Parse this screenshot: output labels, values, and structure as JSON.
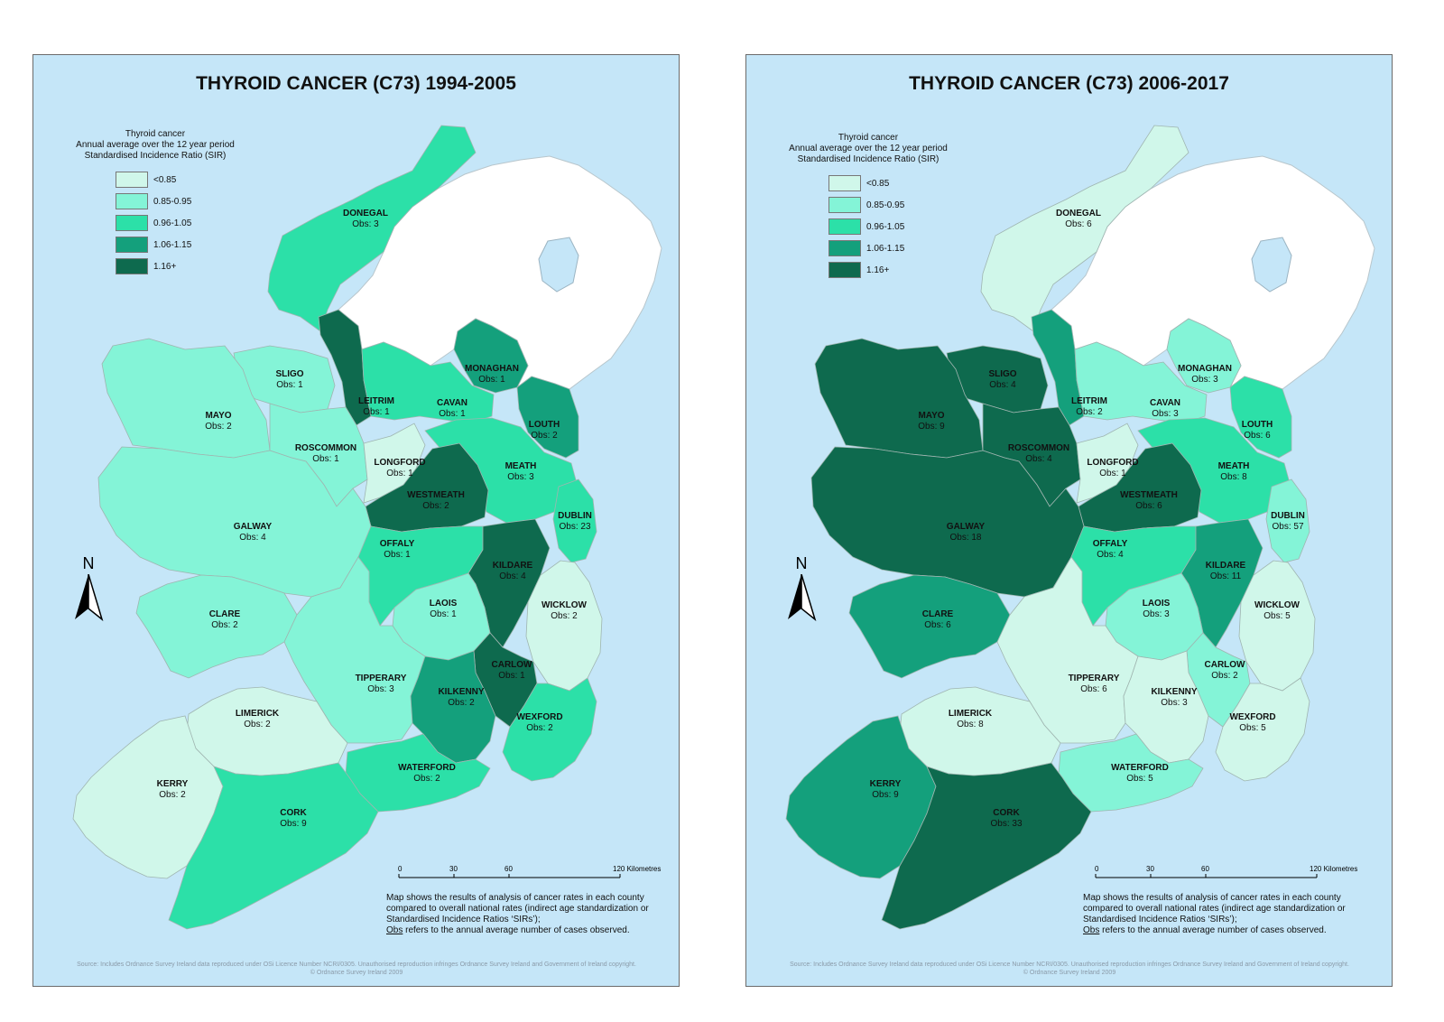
{
  "legend": {
    "title_line1": "Thyroid cancer",
    "title_line2": "Annual average over the 12 year period",
    "title_line3": "Standardised Incidence Ratio (SIR)",
    "classes": [
      {
        "label": "<0.85",
        "color": "#d0f7ea"
      },
      {
        "label": "0.85-0.95",
        "color": "#84f4d7"
      },
      {
        "label": "0.96-1.05",
        "color": "#2ce0a8"
      },
      {
        "label": "1.06-1.15",
        "color": "#14a07c"
      },
      {
        "label": "1.16+",
        "color": "#0e6a4e"
      }
    ]
  },
  "colors": {
    "sea": "#c5e6f8",
    "northern_ireland": "#ffffff",
    "county_border": "#9fb5b0"
  },
  "north_arrow": "N",
  "scale": {
    "ticks": [
      "0",
      "30",
      "60",
      "120 Kilometres"
    ]
  },
  "note": {
    "line1": "Map shows the results of analysis of cancer rates in each county",
    "line2": "compared to overall national rates (indirect age standardization or",
    "line3": "Standardised Incidence Ratios ‘SIRs’);",
    "obs_word": "Obs",
    "line4_rest": " refers to the annual average number of cases observed."
  },
  "source": {
    "line1": "Source: Includes Ordnance Survey Ireland data reproduced under OSi Licence Number NCRI/0305. Unauthorised reproduction infringes Ordnance Survey Ireland and Government of Ireland copyright.",
    "line2": "© Ordnance Survey Ireland 2009"
  },
  "maps": [
    {
      "title": "THYROID CANCER (C73) 1994-2005",
      "counties": [
        {
          "name": "DONEGAL",
          "obs": "Obs: 3",
          "class": 2
        },
        {
          "name": "SLIGO",
          "obs": "Obs: 1",
          "class": 1
        },
        {
          "name": "MAYO",
          "obs": "Obs: 2",
          "class": 1
        },
        {
          "name": "LEITRIM",
          "obs": "Obs: 1",
          "class": 4
        },
        {
          "name": "MONAGHAN",
          "obs": "Obs: 1",
          "class": 3
        },
        {
          "name": "CAVAN",
          "obs": "Obs: 1",
          "class": 2
        },
        {
          "name": "LOUTH",
          "obs": "Obs: 2",
          "class": 3
        },
        {
          "name": "ROSCOMMON",
          "obs": "Obs: 1",
          "class": 1
        },
        {
          "name": "LONGFORD",
          "obs": "Obs: 1",
          "class": 0
        },
        {
          "name": "MEATH",
          "obs": "Obs: 3",
          "class": 2
        },
        {
          "name": "WESTMEATH",
          "obs": "Obs: 2",
          "class": 4
        },
        {
          "name": "DUBLIN",
          "obs": "Obs: 23",
          "class": 2
        },
        {
          "name": "GALWAY",
          "obs": "Obs: 4",
          "class": 1
        },
        {
          "name": "OFFALY",
          "obs": "Obs: 1",
          "class": 2
        },
        {
          "name": "KILDARE",
          "obs": "Obs: 4",
          "class": 4
        },
        {
          "name": "LAOIS",
          "obs": "Obs: 1",
          "class": 1
        },
        {
          "name": "WICKLOW",
          "obs": "Obs: 2",
          "class": 0
        },
        {
          "name": "CLARE",
          "obs": "Obs: 2",
          "class": 1
        },
        {
          "name": "CARLOW",
          "obs": "Obs: 1",
          "class": 4
        },
        {
          "name": "TIPPERARY",
          "obs": "Obs: 3",
          "class": 1
        },
        {
          "name": "KILKENNY",
          "obs": "Obs: 2",
          "class": 3
        },
        {
          "name": "WEXFORD",
          "obs": "Obs: 2",
          "class": 2
        },
        {
          "name": "LIMERICK",
          "obs": "Obs: 2",
          "class": 0
        },
        {
          "name": "WATERFORD",
          "obs": "Obs: 2",
          "class": 2
        },
        {
          "name": "KERRY",
          "obs": "Obs: 2",
          "class": 0
        },
        {
          "name": "CORK",
          "obs": "Obs: 9",
          "class": 2
        }
      ]
    },
    {
      "title": "THYROID CANCER (C73) 2006-2017",
      "counties": [
        {
          "name": "DONEGAL",
          "obs": "Obs: 6",
          "class": 0
        },
        {
          "name": "SLIGO",
          "obs": "Obs: 4",
          "class": 4
        },
        {
          "name": "MAYO",
          "obs": "Obs: 9",
          "class": 4
        },
        {
          "name": "LEITRIM",
          "obs": "Obs: 2",
          "class": 3
        },
        {
          "name": "MONAGHAN",
          "obs": "Obs: 3",
          "class": 1
        },
        {
          "name": "CAVAN",
          "obs": "Obs: 3",
          "class": 1
        },
        {
          "name": "LOUTH",
          "obs": "Obs: 6",
          "class": 2
        },
        {
          "name": "ROSCOMMON",
          "obs": "Obs: 4",
          "class": 4
        },
        {
          "name": "LONGFORD",
          "obs": "Obs: 1",
          "class": 0
        },
        {
          "name": "MEATH",
          "obs": "Obs: 8",
          "class": 2
        },
        {
          "name": "WESTMEATH",
          "obs": "Obs: 6",
          "class": 4
        },
        {
          "name": "DUBLIN",
          "obs": "Obs: 57",
          "class": 1
        },
        {
          "name": "GALWAY",
          "obs": "Obs: 18",
          "class": 4
        },
        {
          "name": "OFFALY",
          "obs": "Obs: 4",
          "class": 2
        },
        {
          "name": "KILDARE",
          "obs": "Obs: 11",
          "class": 3
        },
        {
          "name": "LAOIS",
          "obs": "Obs: 3",
          "class": 1
        },
        {
          "name": "WICKLOW",
          "obs": "Obs: 5",
          "class": 0
        },
        {
          "name": "CLARE",
          "obs": "Obs: 6",
          "class": 3
        },
        {
          "name": "CARLOW",
          "obs": "Obs: 2",
          "class": 1
        },
        {
          "name": "TIPPERARY",
          "obs": "Obs: 6",
          "class": 0
        },
        {
          "name": "KILKENNY",
          "obs": "Obs: 3",
          "class": 0
        },
        {
          "name": "WEXFORD",
          "obs": "Obs: 5",
          "class": 0
        },
        {
          "name": "LIMERICK",
          "obs": "Obs: 8",
          "class": 0
        },
        {
          "name": "WATERFORD",
          "obs": "Obs: 5",
          "class": 1
        },
        {
          "name": "KERRY",
          "obs": "Obs: 9",
          "class": 3
        },
        {
          "name": "CORK",
          "obs": "Obs: 33",
          "class": 4
        }
      ]
    }
  ]
}
